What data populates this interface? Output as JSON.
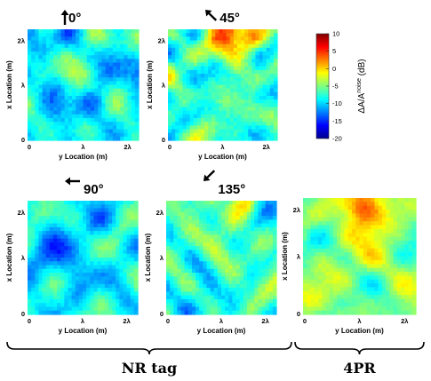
{
  "chart_data": {
    "type": "heatmap",
    "colorbar": {
      "label": "ΔA/A",
      "label_superscript": "noise",
      "label_unit": " (dB)",
      "range": [
        -20,
        10
      ],
      "ticks": [
        "10",
        "5",
        "0",
        "-5",
        "-10",
        "-15",
        "-20"
      ],
      "colormap": "jet"
    },
    "panels": [
      {
        "id": "p0",
        "title": "0°",
        "arrow": "up",
        "xlabel": "y Location (m)",
        "ylabel": "x Location (m)",
        "xticks": [
          "0",
          "λ",
          "2λ"
        ],
        "yticks": [
          "0",
          "λ",
          "2λ"
        ],
        "value_range_db": [
          -15,
          -3
        ]
      },
      {
        "id": "p45",
        "title": "45°",
        "arrow": "up-left",
        "xlabel": "y Location (m)",
        "ylabel": "x Location (m)",
        "xticks": [
          "0",
          "λ",
          "2λ"
        ],
        "yticks": [
          "0",
          "λ",
          "2λ"
        ],
        "value_range_db": [
          -13,
          5
        ]
      },
      {
        "id": "p90",
        "title": "90°",
        "arrow": "left",
        "xlabel": "y Location (m)",
        "ylabel": "x Location (m)",
        "xticks": [
          "0",
          "λ",
          "2λ"
        ],
        "yticks": [
          "0",
          "λ",
          "2λ"
        ],
        "value_range_db": [
          -16,
          -4
        ]
      },
      {
        "id": "p135",
        "title": "135°",
        "arrow": "down-left",
        "xlabel": "y Location (m)",
        "ylabel": "x Location (m)",
        "xticks": [
          "0",
          "λ",
          "2λ"
        ],
        "yticks": [
          "0",
          "λ",
          "2λ"
        ],
        "value_range_db": [
          -14,
          0
        ]
      },
      {
        "id": "p4pr",
        "title": "",
        "arrow": "",
        "xlabel": "y Location (m)",
        "ylabel": "x Location (m)",
        "xticks": [
          "0",
          "λ",
          "2λ"
        ],
        "yticks": [
          "0",
          "λ",
          "2λ"
        ],
        "value_range_db": [
          -10,
          4
        ]
      }
    ],
    "groups": [
      {
        "label": "NR tag",
        "panels": [
          "p0",
          "p45",
          "p90",
          "p135"
        ]
      },
      {
        "label": "4PR",
        "panels": [
          "p4pr"
        ]
      }
    ]
  }
}
